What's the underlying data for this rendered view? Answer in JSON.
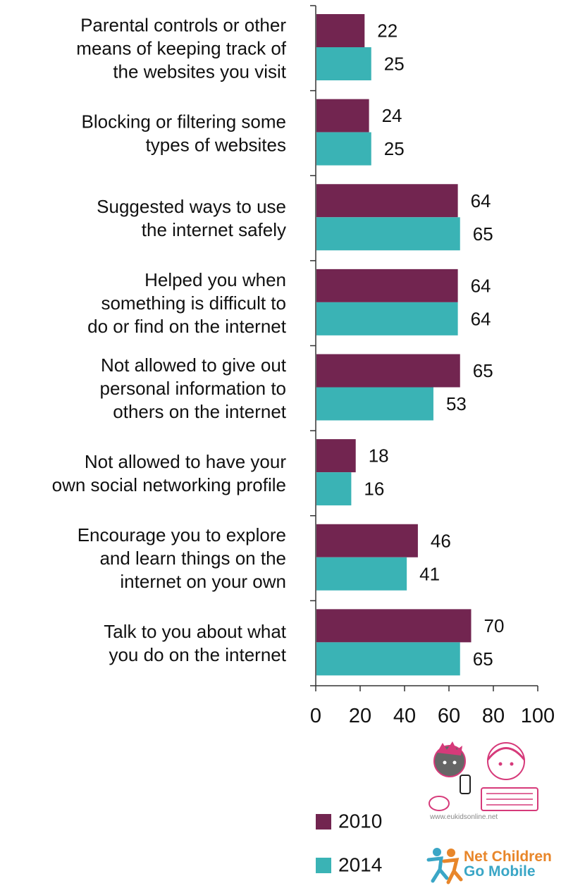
{
  "chart_data": {
    "type": "bar",
    "orientation": "horizontal",
    "categories": [
      [
        "Parental controls or other",
        "means of keeping track of",
        "the websites you visit"
      ],
      [
        "Blocking or filtering some",
        "types of websites"
      ],
      [
        "Suggested ways to use",
        "the internet safely"
      ],
      [
        "Helped you when",
        "something is difficult to",
        "do or find on the internet"
      ],
      [
        "Not allowed to give out",
        "personal information to",
        "others on the internet"
      ],
      [
        "Not allowed to have your",
        "own social networking profile"
      ],
      [
        "Encourage you to explore",
        "and learn things on the",
        "internet on your own"
      ],
      [
        "Talk to you about what",
        "you do on the internet"
      ]
    ],
    "series": [
      {
        "name": "2010",
        "color": "#722550",
        "values": [
          22,
          24,
          64,
          64,
          65,
          18,
          46,
          70
        ]
      },
      {
        "name": "2014",
        "color": "#3ab3b5",
        "values": [
          25,
          25,
          65,
          64,
          53,
          16,
          41,
          65
        ]
      }
    ],
    "xlim": [
      0,
      100
    ],
    "xticks": [
      0,
      20,
      40,
      60,
      80,
      100
    ],
    "grid": false,
    "legend": "bottom"
  },
  "legend": {
    "item_2010": "2010",
    "item_2014": "2014"
  },
  "logos": {
    "eukids_caption": "www.eukidsonline.net",
    "ncgm_line1": "Net Children",
    "ncgm_line2": "Go Mobile"
  }
}
